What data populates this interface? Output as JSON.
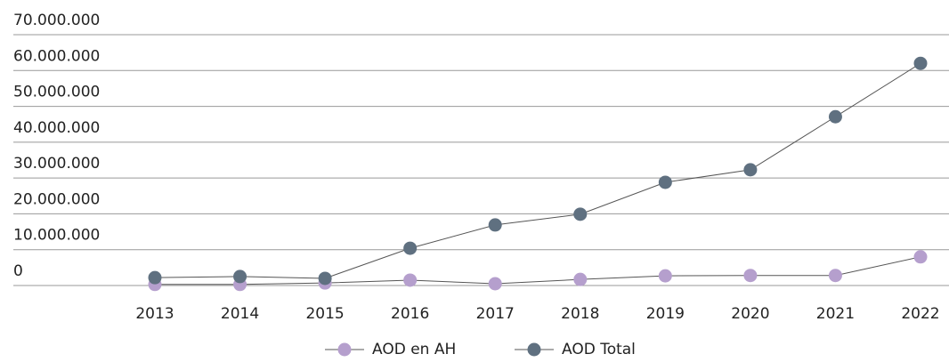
{
  "chart_data": {
    "type": "line",
    "categories": [
      "2013",
      "2014",
      "2015",
      "2016",
      "2017",
      "2018",
      "2019",
      "2020",
      "2021",
      "2022"
    ],
    "series": [
      {
        "name": "AOD en AH",
        "color": "#b59fcd",
        "values": [
          300000,
          300000,
          700000,
          1500000,
          500000,
          1700000,
          2700000,
          2800000,
          2800000,
          8000000
        ]
      },
      {
        "name": "AOD Total",
        "color": "#5f7080",
        "values": [
          2200000,
          2500000,
          2000000,
          10400000,
          16900000,
          19900000,
          28800000,
          32300000,
          47100000,
          62000000
        ]
      }
    ],
    "ylim": [
      0,
      70000000
    ],
    "yticks": [
      0,
      {
        "value": 10000000,
        "label": "10.000.000"
      },
      {
        "value": 20000000,
        "label": "20.000.000"
      },
      {
        "value": 30000000,
        "label": "30.000.000"
      },
      {
        "value": 40000000,
        "label": "40.000.000"
      },
      {
        "value": 50000000,
        "label": "50.000.000"
      },
      {
        "value": 60000000,
        "label": "60.000.000"
      },
      {
        "value": 70000000,
        "label": "70.000.000"
      }
    ],
    "grid": true,
    "legend": "bottom"
  }
}
